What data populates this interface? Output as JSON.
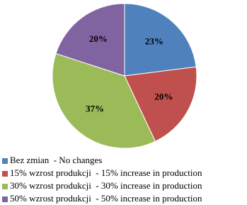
{
  "chart_data": {
    "type": "pie",
    "categories": [
      "Bez zmian  - No changes",
      "15% wzrost produkcji  - 15% increase in production",
      "30% wzrost produkcji  - 30% increase in production",
      "50% wzrost produkcji  - 50% increase in production"
    ],
    "values": [
      23,
      20,
      37,
      20
    ],
    "value_labels": [
      "23%",
      "20%",
      "37%",
      "20%"
    ],
    "colors": [
      "#4f81bd",
      "#c0504d",
      "#9bbb59",
      "#8064a2"
    ],
    "legend": "bottom"
  }
}
